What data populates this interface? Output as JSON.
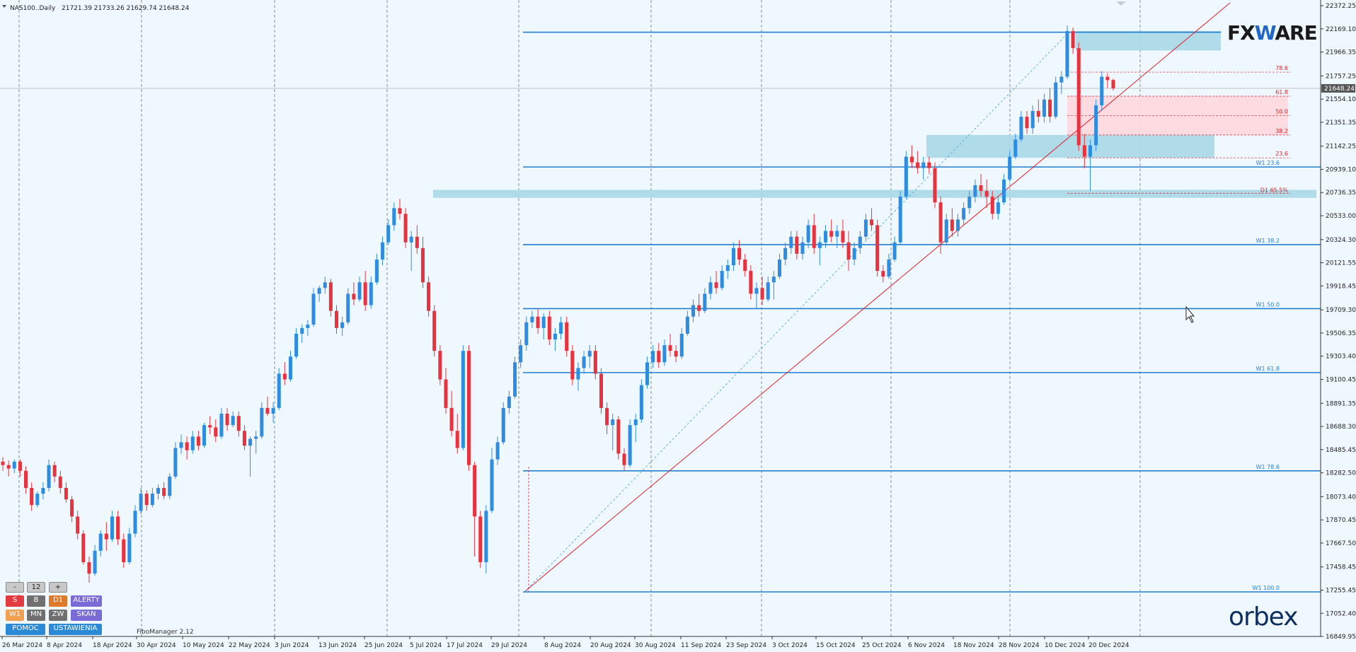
{
  "header": {
    "symbol": "NAS100..Daily",
    "ohlc": "21721.39 21733.26 21629.74 21648.24"
  },
  "chart_data": {
    "type": "candlestick",
    "symbol": "NAS100",
    "timeframe": "Daily",
    "ylim": [
      16849.95,
      22372.25
    ],
    "y_ticks": [
      "22372.25",
      "22169.10",
      "21966.35",
      "21757.25",
      "21554.10",
      "21351.35",
      "21142.25",
      "20939.10",
      "20736.35",
      "20533.00",
      "20324.30",
      "20121.55",
      "19918.45",
      "19709.30",
      "19506.35",
      "19303.40",
      "19100.45",
      "18891.35",
      "18688.30",
      "18485.45",
      "18282.50",
      "18073.40",
      "17870.45",
      "17667.50",
      "17458.45",
      "17255.45",
      "17052.40",
      "16849.95"
    ],
    "x_ticks": [
      "26 Mar 2024",
      "8 Apr 2024",
      "18 Apr 2024",
      "30 Apr 2024",
      "10 May 2024",
      "22 May 2024",
      "3 Jun 2024",
      "13 Jun 2024",
      "25 Jun 2024",
      "5 Jul 2024",
      "17 Jul 2024",
      "29 Jul 2024",
      "8 Aug 2024",
      "20 Aug 2024",
      "30 Aug 2024",
      "11 Sep 2024",
      "23 Sep 2024",
      "3 Oct 2024",
      "15 Oct 2024",
      "25 Oct 2024",
      "6 Nov 2024",
      "18 Nov 2024",
      "28 Nov 2024",
      "10 Dec 2024",
      "20 Dec 2024"
    ],
    "current_price": "21648.24",
    "bull_color": "#2e8de0",
    "bear_color": "#e8333f",
    "candles": [
      [
        18380,
        18420,
        18300,
        18350
      ],
      [
        18350,
        18390,
        18250,
        18320
      ],
      [
        18320,
        18400,
        18280,
        18380
      ],
      [
        18380,
        18400,
        18250,
        18300
      ],
      [
        18300,
        18340,
        18100,
        18150
      ],
      [
        18150,
        18200,
        17950,
        18000
      ],
      [
        18000,
        18120,
        17980,
        18100
      ],
      [
        18100,
        18200,
        18050,
        18150
      ],
      [
        18150,
        18400,
        18120,
        18350
      ],
      [
        18350,
        18380,
        18200,
        18250
      ],
      [
        18250,
        18300,
        18100,
        18150
      ],
      [
        18150,
        18200,
        18020,
        18050
      ],
      [
        18050,
        18080,
        17850,
        17900
      ],
      [
        17900,
        17950,
        17700,
        17750
      ],
      [
        17750,
        17780,
        17480,
        17500
      ],
      [
        17500,
        17550,
        17320,
        17400
      ],
      [
        17400,
        17650,
        17380,
        17600
      ],
      [
        17600,
        17780,
        17550,
        17750
      ],
      [
        17750,
        17850,
        17600,
        17700
      ],
      [
        17700,
        17950,
        17680,
        17900
      ],
      [
        17900,
        17950,
        17650,
        17700
      ],
      [
        17700,
        17750,
        17450,
        17500
      ],
      [
        17500,
        17800,
        17480,
        17750
      ],
      [
        17750,
        18000,
        17720,
        17950
      ],
      [
        17950,
        18150,
        17920,
        18100
      ],
      [
        18100,
        18130,
        17950,
        18000
      ],
      [
        18000,
        18150,
        17980,
        18100
      ],
      [
        18100,
        18180,
        18050,
        18150
      ],
      [
        18150,
        18200,
        18050,
        18080
      ],
      [
        18080,
        18280,
        18050,
        18250
      ],
      [
        18250,
        18550,
        18230,
        18500
      ],
      [
        18500,
        18620,
        18450,
        18550
      ],
      [
        18550,
        18600,
        18400,
        18480
      ],
      [
        18480,
        18650,
        18450,
        18600
      ],
      [
        18600,
        18650,
        18480,
        18520
      ],
      [
        18520,
        18720,
        18500,
        18700
      ],
      [
        18700,
        18780,
        18620,
        18680
      ],
      [
        18680,
        18750,
        18550,
        18600
      ],
      [
        18600,
        18850,
        18580,
        18800
      ],
      [
        18800,
        18850,
        18650,
        18700
      ],
      [
        18700,
        18820,
        18680,
        18780
      ],
      [
        18780,
        18820,
        18600,
        18650
      ],
      [
        18650,
        18700,
        18480,
        18520
      ],
      [
        18520,
        18600,
        18250,
        18580
      ],
      [
        18580,
        18650,
        18450,
        18600
      ],
      [
        18600,
        18900,
        18580,
        18850
      ],
      [
        18850,
        18950,
        18780,
        18800
      ],
      [
        18800,
        18900,
        18720,
        18850
      ],
      [
        18850,
        19200,
        18830,
        19150
      ],
      [
        19150,
        19250,
        19050,
        19100
      ],
      [
        19100,
        19350,
        19080,
        19300
      ],
      [
        19300,
        19550,
        19280,
        19500
      ],
      [
        19500,
        19580,
        19420,
        19550
      ],
      [
        19550,
        19620,
        19480,
        19580
      ],
      [
        19580,
        19900,
        19560,
        19850
      ],
      [
        19850,
        19920,
        19780,
        19900
      ],
      [
        19900,
        20000,
        19850,
        19950
      ],
      [
        19950,
        19980,
        19650,
        19700
      ],
      [
        19700,
        19750,
        19500,
        19550
      ],
      [
        19550,
        19650,
        19480,
        19600
      ],
      [
        19600,
        19900,
        19580,
        19850
      ],
      [
        19850,
        19950,
        19750,
        19800
      ],
      [
        19800,
        20000,
        19780,
        19950
      ],
      [
        19950,
        20050,
        19700,
        19750
      ],
      [
        19750,
        20000,
        19720,
        19950
      ],
      [
        19950,
        20200,
        19930,
        20150
      ],
      [
        20150,
        20350,
        20100,
        20300
      ],
      [
        20300,
        20500,
        20280,
        20450
      ],
      [
        20450,
        20650,
        20400,
        20600
      ],
      [
        20600,
        20680,
        20500,
        20550
      ],
      [
        20550,
        20600,
        20250,
        20300
      ],
      [
        20300,
        20400,
        20050,
        20350
      ],
      [
        20350,
        20450,
        20200,
        20250
      ],
      [
        20250,
        20350,
        19900,
        19950
      ],
      [
        19950,
        20000,
        19650,
        19700
      ],
      [
        19700,
        19750,
        19300,
        19350
      ],
      [
        19350,
        19400,
        19050,
        19100
      ],
      [
        19100,
        19200,
        18800,
        18850
      ],
      [
        18850,
        19000,
        18600,
        18650
      ],
      [
        18650,
        18800,
        18450,
        18500
      ],
      [
        18500,
        19400,
        18480,
        19350
      ],
      [
        19350,
        19400,
        18300,
        18350
      ],
      [
        18350,
        18380,
        17550,
        17900
      ],
      [
        17900,
        17950,
        17450,
        17500
      ],
      [
        17500,
        18000,
        17400,
        17950
      ],
      [
        17950,
        18500,
        17930,
        18400
      ],
      [
        18400,
        18600,
        18350,
        18550
      ],
      [
        18550,
        18900,
        18530,
        18850
      ],
      [
        18850,
        19000,
        18800,
        18950
      ],
      [
        18950,
        19300,
        18930,
        19250
      ],
      [
        19250,
        19450,
        19200,
        19400
      ],
      [
        19400,
        19650,
        19350,
        19600
      ],
      [
        19600,
        19700,
        19550,
        19650
      ],
      [
        19650,
        19720,
        19500,
        19550
      ],
      [
        19550,
        19680,
        19450,
        19650
      ],
      [
        19650,
        19700,
        19400,
        19450
      ],
      [
        19450,
        19550,
        19350,
        19500
      ],
      [
        19500,
        19650,
        19450,
        19600
      ],
      [
        19600,
        19650,
        19300,
        19350
      ],
      [
        19350,
        19400,
        19050,
        19100
      ],
      [
        19100,
        19250,
        19000,
        19200
      ],
      [
        19200,
        19350,
        19150,
        19300
      ],
      [
        19300,
        19400,
        19200,
        19350
      ],
      [
        19350,
        19400,
        19100,
        19150
      ],
      [
        19150,
        19200,
        18800,
        18850
      ],
      [
        18850,
        18900,
        18620,
        18700
      ],
      [
        18700,
        18800,
        18480,
        18750
      ],
      [
        18750,
        18780,
        18400,
        18450
      ],
      [
        18450,
        18500,
        18300,
        18350
      ],
      [
        18350,
        18750,
        18330,
        18700
      ],
      [
        18700,
        18800,
        18550,
        18750
      ],
      [
        18750,
        19100,
        18720,
        19050
      ],
      [
        19050,
        19300,
        19020,
        19250
      ],
      [
        19250,
        19400,
        19200,
        19350
      ],
      [
        19350,
        19420,
        19200,
        19250
      ],
      [
        19250,
        19450,
        19220,
        19400
      ],
      [
        19400,
        19500,
        19300,
        19350
      ],
      [
        19350,
        19400,
        19250,
        19300
      ],
      [
        19300,
        19550,
        19280,
        19500
      ],
      [
        19500,
        19700,
        19480,
        19650
      ],
      [
        19650,
        19800,
        19600,
        19750
      ],
      [
        19750,
        19850,
        19650,
        19700
      ],
      [
        19700,
        19900,
        19680,
        19850
      ],
      [
        19850,
        20000,
        19800,
        19950
      ],
      [
        19950,
        20050,
        19850,
        19900
      ],
      [
        19900,
        20100,
        19880,
        20050
      ],
      [
        20050,
        20150,
        19980,
        20100
      ],
      [
        20100,
        20300,
        20050,
        20250
      ],
      [
        20250,
        20320,
        20100,
        20150
      ],
      [
        20150,
        20200,
        20000,
        20050
      ],
      [
        20050,
        20100,
        19800,
        19850
      ],
      [
        19850,
        19950,
        19720,
        19900
      ],
      [
        19900,
        20000,
        19750,
        19800
      ],
      [
        19800,
        20000,
        19780,
        19950
      ],
      [
        19950,
        20050,
        19800,
        20000
      ],
      [
        20000,
        20200,
        19980,
        20150
      ],
      [
        20150,
        20300,
        20100,
        20250
      ],
      [
        20250,
        20400,
        20200,
        20350
      ],
      [
        20350,
        20400,
        20150,
        20200
      ],
      [
        20200,
        20350,
        20150,
        20300
      ],
      [
        20300,
        20500,
        20250,
        20450
      ],
      [
        20450,
        20550,
        20200,
        20250
      ],
      [
        20250,
        20350,
        20100,
        20300
      ],
      [
        20300,
        20450,
        20250,
        20400
      ],
      [
        20400,
        20500,
        20300,
        20350
      ],
      [
        20350,
        20450,
        20250,
        20400
      ],
      [
        20400,
        20500,
        20250,
        20300
      ],
      [
        20300,
        20400,
        20050,
        20150
      ],
      [
        20150,
        20300,
        20100,
        20250
      ],
      [
        20250,
        20400,
        20200,
        20350
      ],
      [
        20350,
        20550,
        20320,
        20500
      ],
      [
        20500,
        20600,
        20400,
        20450
      ],
      [
        20450,
        20500,
        20000,
        20050
      ],
      [
        20050,
        20100,
        19950,
        20000
      ],
      [
        20000,
        20200,
        19980,
        20150
      ],
      [
        20150,
        20350,
        20130,
        20300
      ],
      [
        20300,
        20750,
        20280,
        20700
      ],
      [
        20700,
        21100,
        20680,
        21050
      ],
      [
        21050,
        21150,
        20950,
        21000
      ],
      [
        21000,
        21100,
        20900,
        20950
      ],
      [
        20950,
        21050,
        20850,
        21000
      ],
      [
        21000,
        21050,
        20900,
        20950
      ],
      [
        20950,
        21000,
        20600,
        20650
      ],
      [
        20650,
        20700,
        20200,
        20300
      ],
      [
        20300,
        20550,
        20280,
        20500
      ],
      [
        20500,
        20600,
        20350,
        20400
      ],
      [
        20400,
        20550,
        20350,
        20500
      ],
      [
        20500,
        20650,
        20450,
        20600
      ],
      [
        20600,
        20750,
        20550,
        20700
      ],
      [
        20700,
        20850,
        20650,
        20800
      ],
      [
        20800,
        20900,
        20700,
        20750
      ],
      [
        20750,
        20850,
        20600,
        20700
      ],
      [
        20700,
        20750,
        20500,
        20550
      ],
      [
        20550,
        20700,
        20500,
        20650
      ],
      [
        20650,
        20900,
        20630,
        20850
      ],
      [
        20850,
        21100,
        20830,
        21050
      ],
      [
        21050,
        21250,
        21030,
        21200
      ],
      [
        21200,
        21450,
        21180,
        21400
      ],
      [
        21400,
        21450,
        21250,
        21300
      ],
      [
        21300,
        21500,
        21250,
        21450
      ],
      [
        21450,
        21550,
        21350,
        21400
      ],
      [
        21400,
        21600,
        21350,
        21550
      ],
      [
        21550,
        21650,
        21350,
        21400
      ],
      [
        21400,
        21750,
        21380,
        21700
      ],
      [
        21700,
        21800,
        21600,
        21750
      ],
      [
        21750,
        22200,
        21730,
        22150
      ],
      [
        22150,
        22180,
        21950,
        22000
      ],
      [
        22000,
        22050,
        21100,
        21150
      ],
      [
        21150,
        21250,
        20950,
        21050
      ],
      [
        21050,
        21200,
        20750,
        21150
      ],
      [
        21150,
        21550,
        21100,
        21500
      ],
      [
        21500,
        21800,
        21450,
        21750
      ],
      [
        21750,
        21780,
        21650,
        21720
      ],
      [
        21721.39,
        21733.26,
        21629.74,
        21648.24
      ]
    ],
    "horizontal_levels": [
      {
        "price": 22140,
        "label": ""
      },
      {
        "price": 20960,
        "label": "W1 23.6"
      },
      {
        "price": 20280,
        "label": "W1 38.2"
      },
      {
        "price": 19720,
        "label": "W1 50.0"
      },
      {
        "price": 19160,
        "label": "W1 61.8"
      },
      {
        "price": 18300,
        "label": "W1 78.6"
      },
      {
        "price": 17240,
        "label": "W1 100.0"
      }
    ],
    "fib_levels": [
      {
        "price": 21790,
        "label": "78.6"
      },
      {
        "price": 21580,
        "label": "61.8"
      },
      {
        "price": 21410,
        "label": "50.0"
      },
      {
        "price": 21240,
        "label": "38.2"
      },
      {
        "price": 21040,
        "label": "23.6"
      }
    ],
    "d1_level": {
      "price": 20730,
      "label": "D1 65.5%"
    },
    "zones": [
      {
        "from": 21980,
        "to": 22150,
        "color": "#a8d8e8"
      },
      {
        "from": 21040,
        "to": 21240,
        "color": "#a8d8e8"
      },
      {
        "from": 20690,
        "to": 20760,
        "color": "#a8d8e8"
      },
      {
        "from": 21240,
        "to": 21580,
        "color": "#ffd7de"
      }
    ],
    "trendline": {
      "from": 17240,
      "to": 22372.25,
      "color": "#e0202a"
    }
  },
  "controls": {
    "minus": "-",
    "count": "12",
    "plus": "+",
    "s": "S",
    "b": "B",
    "d1": "D1",
    "alerty": "ALERTY",
    "w1": "W1",
    "mn": "MN",
    "zw": "ZW",
    "skan": "SKAN",
    "pomoc": "POMOC",
    "ustawienia": "USTAWIENIA",
    "fibo_manager": "FiboManager 2.12"
  },
  "branding": {
    "fxware_a": "FX",
    "fxware_w": "W",
    "fxware_b": "ARE",
    "orbex": "orbex"
  }
}
